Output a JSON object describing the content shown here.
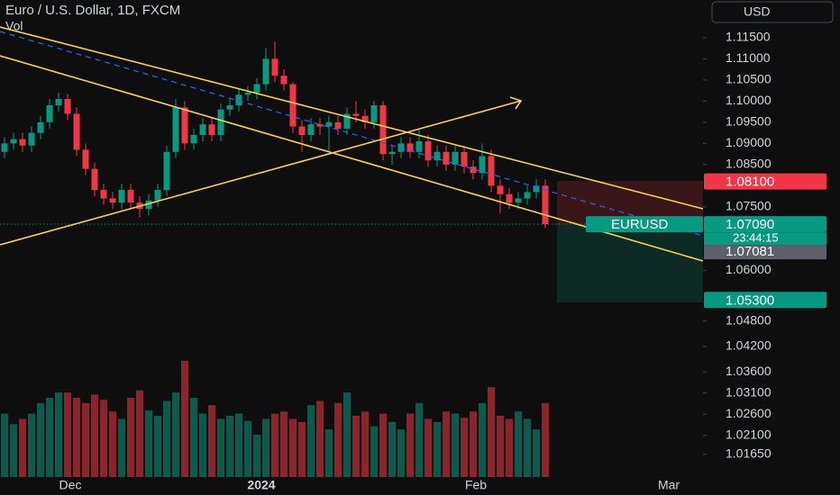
{
  "chart_data": {
    "type": "candlestick",
    "title": "Euro / U.S. Dollar, 1D, FXCM",
    "volume_label": "Vol",
    "currency": "USD",
    "symbol": "EURUSD",
    "countdown": "23:44:15",
    "x_labels": [
      "Dec",
      "2024",
      "Feb",
      "Mar"
    ],
    "up_color": "#089981",
    "down_color": "#f23645",
    "ylim": [
      1.0069,
      1.1239
    ],
    "yticks": [
      {
        "value": 1.115,
        "label": "1.11500"
      },
      {
        "value": 1.11,
        "label": "1.11000"
      },
      {
        "value": 1.105,
        "label": "1.10500"
      },
      {
        "value": 1.1,
        "label": "1.10000"
      },
      {
        "value": 1.095,
        "label": "1.09500"
      },
      {
        "value": 1.09,
        "label": "1.09000"
      },
      {
        "value": 1.085,
        "label": "1.08500"
      },
      {
        "value": 1.075,
        "label": "1.07500"
      },
      {
        "value": 1.06,
        "label": "1.06000"
      },
      {
        "value": 1.048,
        "label": "1.04800"
      },
      {
        "value": 1.042,
        "label": "1.04200"
      },
      {
        "value": 1.036,
        "label": "1.03600"
      },
      {
        "value": 1.031,
        "label": "1.03100"
      },
      {
        "value": 1.026,
        "label": "1.02600"
      },
      {
        "value": 1.021,
        "label": "1.02100"
      },
      {
        "value": 1.0165,
        "label": "1.01650"
      }
    ],
    "price_labels": [
      {
        "value": 1.081,
        "label": "1.08100",
        "color": "#f23645"
      },
      {
        "value": 1.0709,
        "label": "1.07090",
        "color": "#089981"
      },
      {
        "value": 1.053,
        "label": "1.05300",
        "color": "#089981"
      }
    ],
    "bid_label": "1.07081",
    "ohlc": [
      [
        1.088,
        1.0915,
        1.0865,
        1.09
      ],
      [
        1.09,
        1.0925,
        1.0885,
        1.091
      ],
      [
        1.091,
        1.0925,
        1.088,
        1.0895
      ],
      [
        1.0895,
        1.094,
        1.088,
        1.0925
      ],
      [
        1.0925,
        1.0965,
        1.091,
        1.095
      ],
      [
        1.095,
        1.1005,
        1.0935,
        1.099
      ],
      [
        1.099,
        1.102,
        1.0975,
        1.1005
      ],
      [
        1.1005,
        1.1017,
        1.0955,
        1.097
      ],
      [
        1.097,
        1.0985,
        1.087,
        1.0885
      ],
      [
        1.0885,
        1.09,
        1.0825,
        1.084
      ],
      [
        1.084,
        1.0855,
        1.0775,
        1.079
      ],
      [
        1.079,
        1.0805,
        1.0755,
        1.077
      ],
      [
        1.077,
        1.0785,
        1.0745,
        1.076
      ],
      [
        1.076,
        1.0805,
        1.0745,
        1.079
      ],
      [
        1.079,
        1.0805,
        1.0745,
        1.076
      ],
      [
        1.076,
        1.0775,
        1.0725,
        1.0745
      ],
      [
        1.0745,
        1.078,
        1.073,
        1.0765
      ],
      [
        1.0765,
        1.0805,
        1.075,
        1.079
      ],
      [
        1.079,
        1.0895,
        1.0775,
        1.088
      ],
      [
        1.088,
        1.1005,
        1.0865,
        1.0985
      ],
      [
        1.0985,
        1.1,
        1.0885,
        1.09
      ],
      [
        1.09,
        1.0935,
        1.0885,
        1.092
      ],
      [
        1.092,
        1.096,
        1.0905,
        1.0945
      ],
      [
        1.0945,
        1.096,
        1.0905,
        1.092
      ],
      [
        1.092,
        1.0995,
        1.0905,
        1.098
      ],
      [
        1.098,
        1.1005,
        1.0965,
        1.099
      ],
      [
        1.099,
        1.103,
        1.0975,
        1.1015
      ],
      [
        1.1015,
        1.1035,
        1.1,
        1.102
      ],
      [
        1.102,
        1.1055,
        1.1005,
        1.104
      ],
      [
        1.104,
        1.1125,
        1.1025,
        1.11
      ],
      [
        1.11,
        1.114,
        1.1045,
        1.106
      ],
      [
        1.106,
        1.1075,
        1.1025,
        1.104
      ],
      [
        1.104,
        1.1045,
        1.0925,
        1.094
      ],
      [
        1.094,
        1.0955,
        1.088,
        1.092
      ],
      [
        1.092,
        1.096,
        1.0905,
        1.0945
      ],
      [
        1.0945,
        1.096,
        1.092,
        1.094
      ],
      [
        1.094,
        1.0965,
        1.088,
        1.095
      ],
      [
        1.095,
        1.0965,
        1.092,
        1.0935
      ],
      [
        1.0935,
        1.0985,
        1.092,
        1.097
      ],
      [
        1.097,
        1.1,
        1.095,
        1.0965
      ],
      [
        1.0965,
        1.098,
        1.0935,
        1.095
      ],
      [
        1.095,
        1.1,
        1.0935,
        1.099
      ],
      [
        1.099,
        1.1,
        1.086,
        1.0875
      ],
      [
        1.0875,
        1.0895,
        1.085,
        1.088
      ],
      [
        1.088,
        1.0915,
        1.0865,
        1.09
      ],
      [
        1.09,
        1.0915,
        1.0865,
        1.088
      ],
      [
        1.088,
        1.0935,
        1.0865,
        1.0905
      ],
      [
        1.0905,
        1.092,
        1.0845,
        1.086
      ],
      [
        1.086,
        1.0895,
        1.0845,
        1.088
      ],
      [
        1.088,
        1.0895,
        1.0835,
        1.085
      ],
      [
        1.085,
        1.0895,
        1.0835,
        1.088
      ],
      [
        1.088,
        1.0895,
        1.083,
        1.0845
      ],
      [
        1.0845,
        1.086,
        1.0815,
        1.083
      ],
      [
        1.083,
        1.09,
        1.0815,
        1.087
      ],
      [
        1.087,
        1.0885,
        1.0785,
        1.08
      ],
      [
        1.08,
        1.0815,
        1.0735,
        1.078
      ],
      [
        1.078,
        1.0795,
        1.0745,
        1.076
      ],
      [
        1.076,
        1.0785,
        1.0745,
        1.077
      ],
      [
        1.077,
        1.08,
        1.0755,
        1.0785
      ],
      [
        1.0785,
        1.0815,
        1.077,
        1.08
      ],
      [
        1.08,
        1.0815,
        1.07,
        1.0709
      ]
    ],
    "volume": [
      60,
      50,
      55,
      60,
      70,
      75,
      80,
      80,
      75,
      70,
      78,
      73,
      62,
      55,
      75,
      82,
      63,
      58,
      72,
      80,
      110,
      75,
      60,
      68,
      55,
      58,
      60,
      53,
      40,
      55,
      60,
      62,
      55,
      52,
      68,
      72,
      45,
      70,
      80,
      58,
      62,
      48,
      60,
      52,
      45,
      60,
      70,
      55,
      52,
      62,
      60,
      56,
      62,
      70,
      85,
      58,
      55,
      62,
      55,
      45,
      70
    ],
    "volume_ylim": [
      0,
      115
    ]
  }
}
